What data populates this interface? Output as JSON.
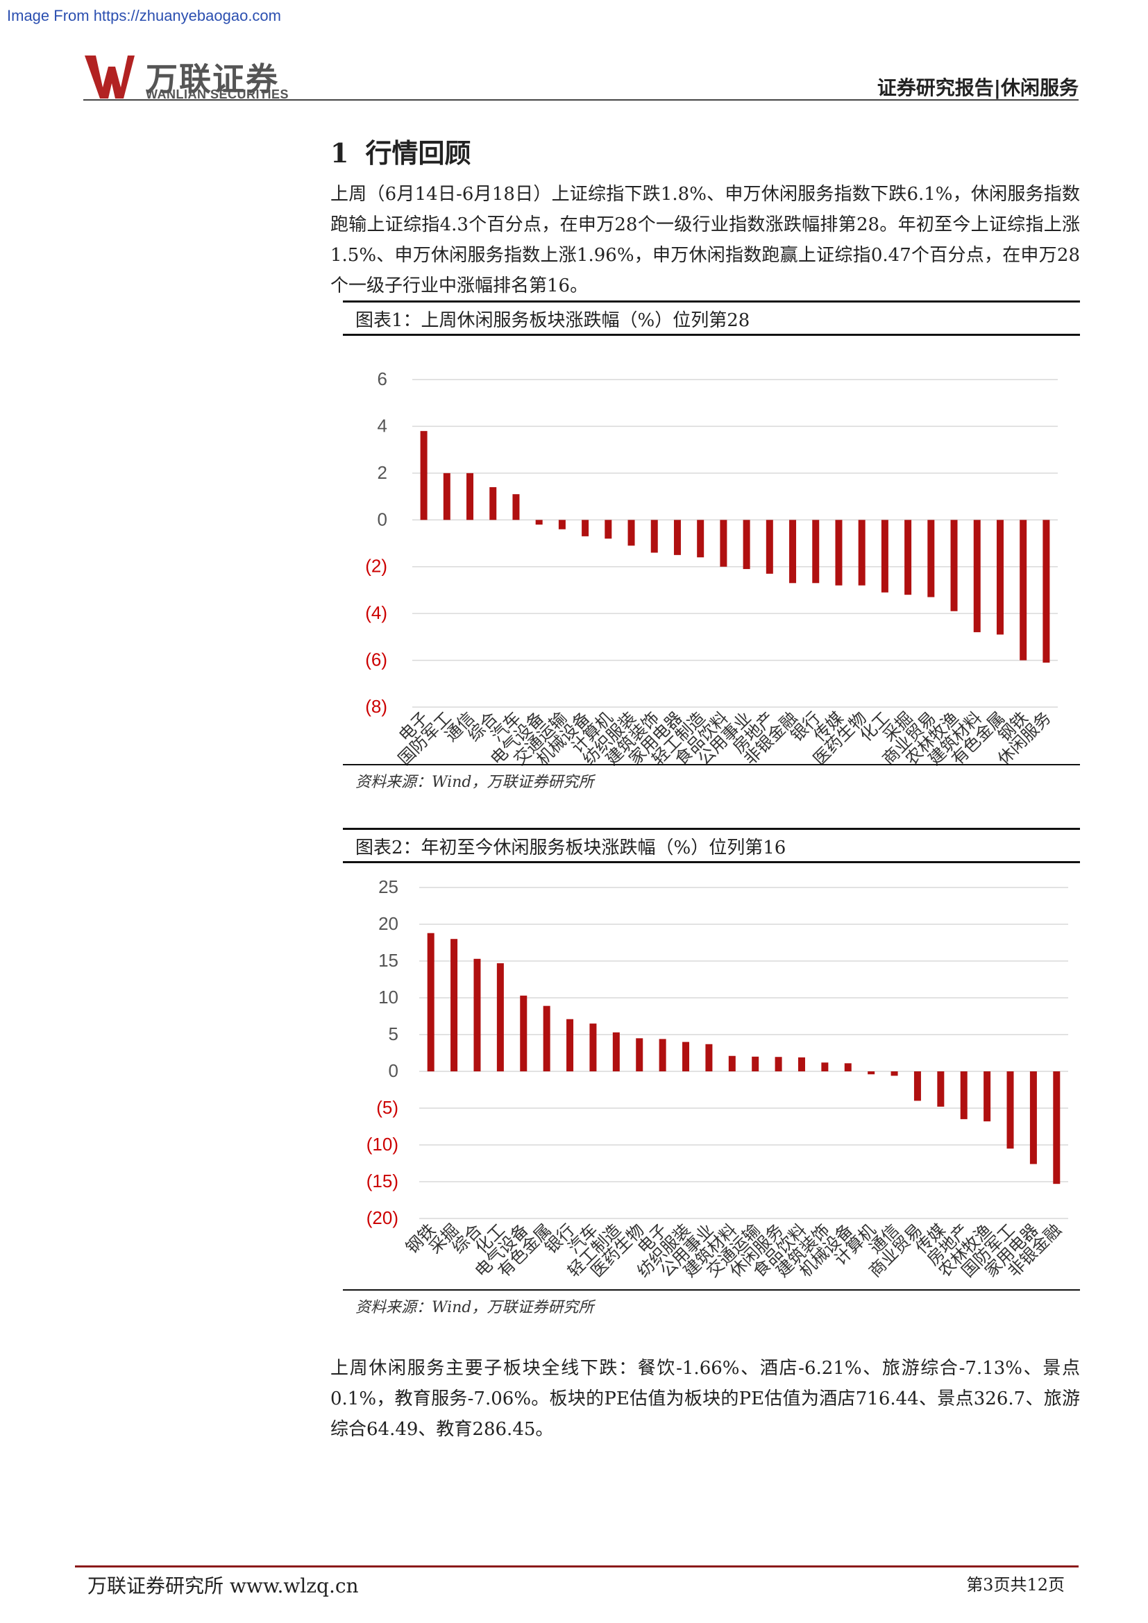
{
  "source_note": "Image From https://zhuanyebaogao.com",
  "brand": {
    "name_cn": "万联证券",
    "name_en": "WANLIAN SECURITIES",
    "accent": "#b22222"
  },
  "header": {
    "report_type": "证券研究报告|休闲服务"
  },
  "section": {
    "number": "1",
    "title": "行情回顾"
  },
  "paragraph1": "上周（6月14日-6月18日）上证综指下跌1.8%、申万休闲服务指数下跌6.1%，休闲服务指数跑输上证综指4.3个百分点，在申万28个一级行业指数涨跌幅排第28。年初至今上证综指上涨1.5%、申万休闲服务指数上涨1.96%，申万休闲指数跑赢上证综指0.47个百分点，在申万28个一级子行业中涨幅排名第16。",
  "figure1": {
    "caption": "图表1：上周休闲服务板块涨跌幅（%）位列第28",
    "source": "资料来源：Wind，万联证券研究所"
  },
  "figure2": {
    "caption": "图表2：年初至今休闲服务板块涨跌幅（%）位列第16",
    "source": "资料来源：Wind，万联证券研究所"
  },
  "chart_data": [
    {
      "type": "bar",
      "title": "图表1：上周休闲服务板块涨跌幅（%）位列第28",
      "categories": [
        "电子",
        "国防军工",
        "通信",
        "综合",
        "汽车",
        "电气设备",
        "交通运输",
        "机械设备",
        "计算机",
        "纺织服装",
        "建筑装饰",
        "家用电器",
        "轻工制造",
        "食品饮料",
        "公用事业",
        "房地产",
        "非银金融",
        "银行",
        "传媒",
        "医药生物",
        "化工",
        "采掘",
        "商业贸易",
        "农林牧渔",
        "建筑材料",
        "有色金属",
        "钢铁",
        "休闲服务"
      ],
      "values": [
        3.8,
        2.0,
        2.0,
        1.4,
        1.1,
        -0.2,
        -0.4,
        -0.7,
        -0.8,
        -1.1,
        -1.4,
        -1.5,
        -1.6,
        -2.0,
        -2.1,
        -2.3,
        -2.7,
        -2.7,
        -2.8,
        -2.8,
        -3.1,
        -3.2,
        -3.3,
        -3.9,
        -4.8,
        -4.9,
        -6.0,
        -6.1
      ],
      "yticks": [
        "6",
        "4",
        "2",
        "0",
        "(2)",
        "(4)",
        "(6)",
        "(8)"
      ],
      "ylim": [
        -8,
        6
      ],
      "grid": true,
      "bar_color": "#b01010",
      "negative_tick_color": "#cc0000"
    },
    {
      "type": "bar",
      "title": "图表2：年初至今休闲服务板块涨跌幅（%）位列第16",
      "categories": [
        "钢铁",
        "采掘",
        "综合",
        "化工",
        "电气设备",
        "有色金属",
        "银行",
        "汽车",
        "轻工制造",
        "医药生物",
        "电子",
        "纺织服装",
        "公用事业",
        "建筑材料",
        "交通运输",
        "休闲服务",
        "食品饮料",
        "建筑装饰",
        "机械设备",
        "计算机",
        "通信",
        "商业贸易",
        "传媒",
        "房地产",
        "农林牧渔",
        "国防军工",
        "家用电器",
        "非银金融"
      ],
      "values": [
        18.8,
        18.0,
        15.3,
        14.7,
        10.3,
        8.9,
        7.1,
        6.5,
        5.3,
        4.5,
        4.4,
        4.0,
        3.7,
        2.1,
        2.0,
        1.96,
        1.9,
        1.2,
        1.1,
        -0.4,
        -0.6,
        -4.0,
        -4.8,
        -6.5,
        -6.8,
        -10.5,
        -12.6,
        -15.3
      ],
      "yticks": [
        "25",
        "20",
        "15",
        "10",
        "5",
        "0",
        "(5)",
        "(10)",
        "(15)",
        "(20)"
      ],
      "ylim": [
        -20,
        25
      ],
      "grid": true,
      "bar_color": "#b01010",
      "negative_tick_color": "#cc0000"
    }
  ],
  "paragraph2": "上周休闲服务主要子板块全线下跌：餐饮-1.66%、酒店-6.21%、旅游综合-7.13%、景点0.1%，教育服务-7.06%。板块的PE估值为板块的PE估值为酒店716.44、景点326.7、旅游综合64.49、教育286.45。",
  "footer": {
    "left": "万联证券研究所  www.wlzq.cn",
    "right": "第3页共12页"
  }
}
